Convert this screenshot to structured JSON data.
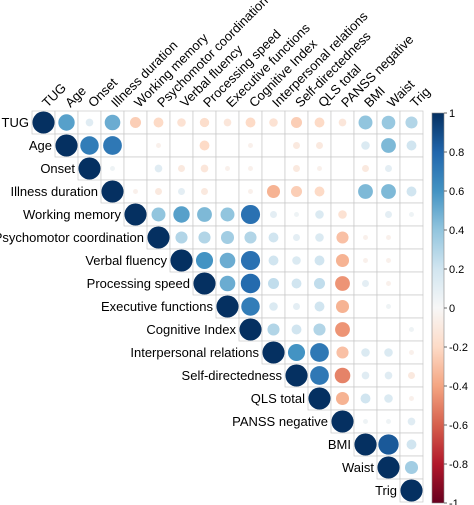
{
  "chart_data": {
    "type": "heatmap",
    "variables": [
      "TUG",
      "Age",
      "Onset",
      "Illness duration",
      "Working memory",
      "Psychomotor coordination",
      "Verbal fluency",
      "Processing speed",
      "Executive functions",
      "Cognitive Index",
      "Interpersonal relations",
      "Self-directedness",
      "QLS total",
      "PANSS negative",
      "BMI",
      "Waist",
      "Trig"
    ],
    "layout": "upper-triangle",
    "color_scale": {
      "range": [
        -1,
        1
      ],
      "ticks": [
        "-1",
        "-0.8",
        "-0.6",
        "-0.4",
        "-0.2",
        "0",
        "0.2",
        "0.4",
        "0.6",
        "0.8",
        "1"
      ],
      "negative_color": "#67001f",
      "neutral_color": "#f7f7f7",
      "positive_color": "#053061"
    },
    "grid": true,
    "legend": "right",
    "values": [
      [
        1,
        0.55,
        0.12,
        0.5,
        -0.25,
        -0.2,
        -0.15,
        -0.18,
        -0.12,
        -0.2,
        -0.15,
        -0.25,
        -0.2,
        -0.12,
        0.4,
        0.38,
        0.3
      ],
      [
        0.55,
        1,
        0.7,
        0.72,
        0,
        -0.05,
        0,
        -0.2,
        0,
        -0.05,
        0,
        -0.1,
        -0.1,
        0,
        0.15,
        0.45,
        0.2
      ],
      [
        0.12,
        0.7,
        1,
        0.05,
        0,
        0.12,
        -0.1,
        -0.12,
        -0.05,
        -0.05,
        0,
        -0.1,
        -0.05,
        0,
        -0.1,
        0.1,
        0
      ],
      [
        0.5,
        0.72,
        0.05,
        1,
        -0.05,
        -0.1,
        0.1,
        -0.1,
        0,
        -0.05,
        -0.35,
        -0.25,
        -0.2,
        0,
        0.45,
        0.45,
        0.2
      ],
      [
        -0.25,
        0,
        0,
        -0.05,
        1,
        0.4,
        0.55,
        0.45,
        0.4,
        0.75,
        0.1,
        0.05,
        0.15,
        -0.15,
        0,
        0.1,
        0.05
      ],
      [
        -0.2,
        -0.05,
        0.12,
        -0.1,
        0.4,
        1,
        0.3,
        0.3,
        0.35,
        0.3,
        0.2,
        0.1,
        0.15,
        -0.3,
        -0.05,
        -0.05,
        0
      ],
      [
        -0.15,
        0,
        -0.1,
        0.1,
        0.55,
        0.3,
        1,
        0.6,
        0.5,
        0.75,
        0.2,
        0.15,
        0.2,
        -0.35,
        -0.05,
        -0.05,
        0
      ],
      [
        -0.18,
        -0.2,
        -0.12,
        -0.1,
        0.45,
        0.3,
        0.6,
        1,
        0.5,
        0.78,
        0.25,
        0.2,
        0.25,
        -0.45,
        0.1,
        -0.05,
        0
      ],
      [
        -0.12,
        0,
        -0.05,
        0,
        0.4,
        0.35,
        0.5,
        0.5,
        1,
        0.7,
        0.15,
        0.1,
        0.2,
        -0.35,
        0,
        0.05,
        0
      ],
      [
        -0.2,
        -0.05,
        -0.05,
        -0.05,
        0.75,
        0.3,
        0.75,
        0.78,
        0.7,
        1,
        0.3,
        0.2,
        0.3,
        -0.45,
        0,
        0,
        0.05
      ],
      [
        -0.15,
        0,
        0,
        -0.35,
        0.1,
        0.2,
        0.2,
        0.25,
        0.15,
        0.3,
        1,
        0.6,
        0.72,
        -0.3,
        0.15,
        0.15,
        -0.05
      ],
      [
        -0.25,
        -0.1,
        -0.1,
        -0.25,
        0.05,
        0.1,
        0.15,
        0.2,
        0.1,
        0.2,
        0.6,
        1,
        0.72,
        -0.5,
        0.12,
        0.12,
        -0.1
      ],
      [
        -0.2,
        -0.1,
        -0.05,
        -0.2,
        0.15,
        0.15,
        0.2,
        0.25,
        0.2,
        0.3,
        0.72,
        0.72,
        1,
        -0.35,
        0.2,
        0.15,
        -0.05
      ],
      [
        -0.12,
        0,
        0,
        0,
        -0.15,
        -0.3,
        -0.35,
        -0.45,
        -0.35,
        -0.45,
        -0.3,
        -0.5,
        -0.35,
        1,
        0.05,
        0.05,
        0.12
      ],
      [
        0.4,
        0.15,
        -0.1,
        0.45,
        0,
        -0.05,
        -0.05,
        0.1,
        0,
        0,
        0.15,
        0.12,
        0.2,
        0.05,
        1,
        0.85,
        0.2
      ],
      [
        0.38,
        0.45,
        0.1,
        0.45,
        0.1,
        -0.05,
        -0.05,
        -0.05,
        0.05,
        0,
        0.15,
        0.12,
        0.15,
        0.05,
        0.85,
        1,
        0.35
      ],
      [
        0.3,
        0.2,
        0,
        0.2,
        0.05,
        0,
        0,
        0,
        0,
        0.05,
        -0.05,
        -0.1,
        -0.05,
        0.12,
        0.2,
        0.35,
        1
      ]
    ]
  }
}
